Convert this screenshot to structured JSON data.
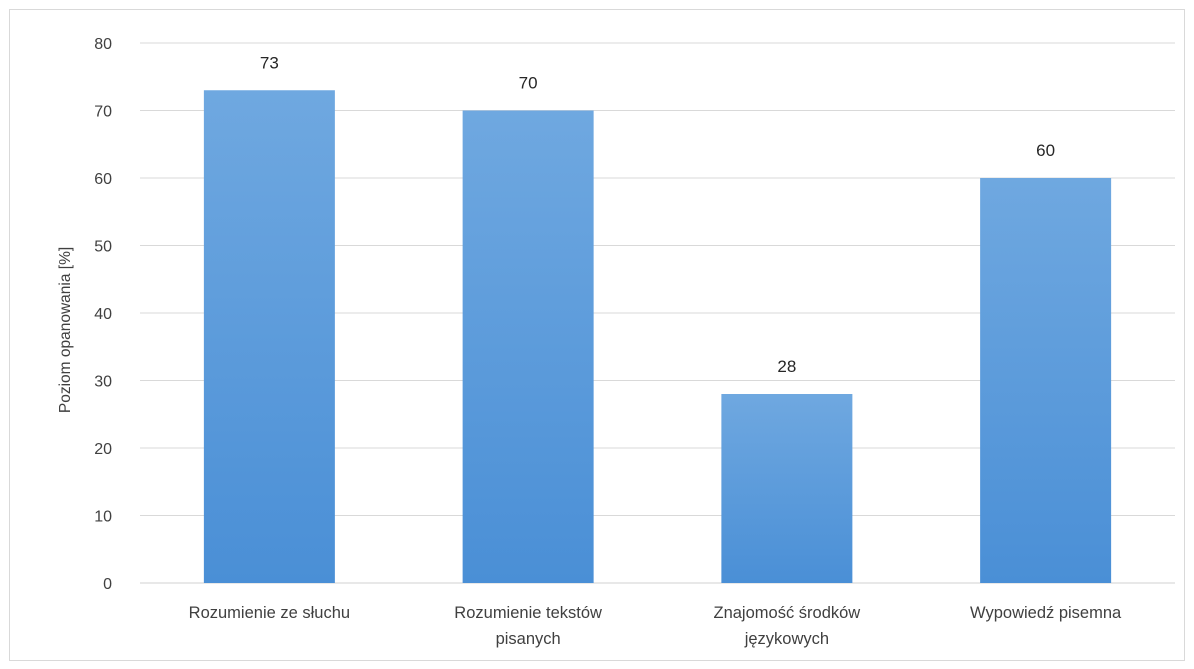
{
  "chart_data": {
    "type": "bar",
    "title": "",
    "xlabel": "",
    "ylabel": "Poziom opanowania [%]",
    "ylim": [
      0,
      80
    ],
    "yticks": [
      0,
      10,
      20,
      30,
      40,
      50,
      60,
      70,
      80
    ],
    "grid": true,
    "legend": "none",
    "categories": [
      [
        "Rozumienie ze słuchu"
      ],
      [
        "Rozumienie tekstów",
        "pisanych"
      ],
      [
        "Znajomość środków",
        "językowych"
      ],
      [
        "Wypowiedź pisemna"
      ]
    ],
    "values": [
      73,
      70,
      28,
      60
    ],
    "data_labels": [
      "73",
      "70",
      "28",
      "60"
    ],
    "colors": {
      "bar_top": "#6fa8e0",
      "bar_bottom": "#4a8fd6",
      "grid": "#d9d9d9",
      "text": "#404040"
    }
  }
}
